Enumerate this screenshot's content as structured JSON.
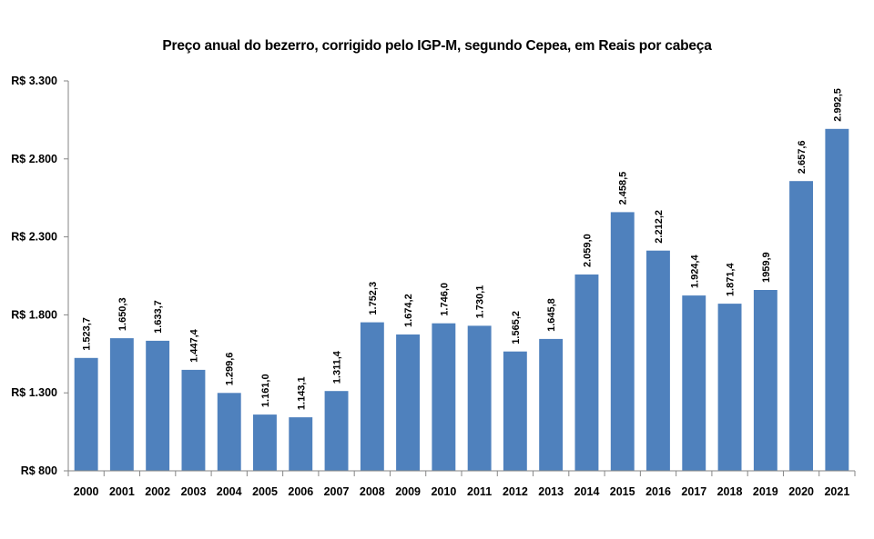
{
  "chart_data": {
    "type": "bar",
    "title": "Preço anual do bezerro,  corrigido pelo IGP-M, segundo Cepea, em Reais por cabeça",
    "xlabel": "",
    "ylabel": "",
    "ylim": [
      800,
      3300
    ],
    "yticks": [
      800,
      1300,
      1800,
      2300,
      2800,
      3300
    ],
    "ytick_labels": [
      "R$ 800",
      "R$ 1.300",
      "R$ 1.800",
      "R$ 2.300",
      "R$ 2.800",
      "R$ 3.300"
    ],
    "grid": false,
    "legend": "none",
    "bar_color": "#4f81bd",
    "categories": [
      "2000",
      "2001",
      "2002",
      "2003",
      "2004",
      "2005",
      "2006",
      "2007",
      "2008",
      "2009",
      "2010",
      "2011",
      "2012",
      "2013",
      "2014",
      "2015",
      "2016",
      "2017",
      "2018",
      "2019",
      "2020",
      "2021"
    ],
    "values": [
      1523.7,
      1650.3,
      1633.7,
      1447.4,
      1299.6,
      1161.0,
      1143.1,
      1311.4,
      1752.3,
      1674.2,
      1746.0,
      1730.1,
      1565.2,
      1645.8,
      2059.0,
      2458.5,
      2212.2,
      1924.4,
      1871.4,
      1959.9,
      2657.6,
      2992.5
    ],
    "data_labels": [
      "1.523,7",
      "1.650,3",
      "1.633,7",
      "1.447,4",
      "1.299,6",
      "1.161,0",
      "1.143,1",
      "1.311,4",
      "1.752,3",
      "1.674,2",
      "1.746,0",
      "1.730,1",
      "1.565,2",
      "1.645,8",
      "2.059,0",
      "2.458,5",
      "2.212,2",
      "1.924,4",
      "1.871,4",
      "1959,9",
      "2.657,6",
      "2.992,5"
    ]
  }
}
